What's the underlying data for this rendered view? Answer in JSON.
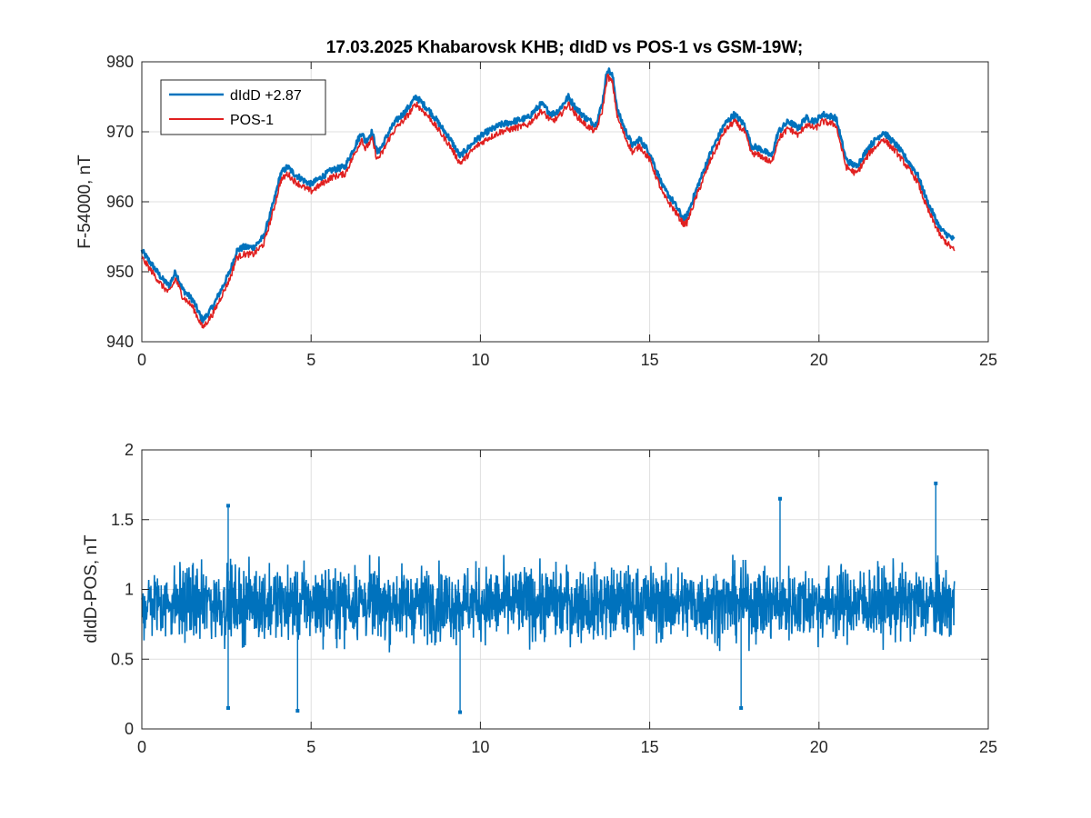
{
  "figure": {
    "title": "17.03.2025  Khabarovsk KHB; dIdD vs POS-1 vs GSM-19W;"
  },
  "chart_data": [
    {
      "type": "line",
      "title": "17.03.2025  Khabarovsk KHB; dIdD vs POS-1 vs GSM-19W;",
      "xlabel": "",
      "ylabel": "F-54000, nT",
      "xlim": [
        0,
        25
      ],
      "ylim": [
        940,
        980
      ],
      "xticks": [
        0,
        5,
        10,
        15,
        20,
        25
      ],
      "yticks": [
        940,
        950,
        960,
        970,
        980
      ],
      "grid": true,
      "legend": "top-left",
      "series": [
        {
          "name": "dIdD +2.87",
          "color": "#0072BD",
          "x": [
            0,
            0.3,
            0.6,
            0.8,
            1.0,
            1.2,
            1.5,
            1.8,
            2.1,
            2.4,
            2.6,
            2.8,
            3.0,
            3.3,
            3.6,
            3.9,
            4.1,
            4.3,
            4.5,
            4.8,
            5.0,
            5.3,
            5.6,
            6.0,
            6.3,
            6.5,
            6.6,
            6.8,
            6.95,
            7.1,
            7.3,
            7.5,
            7.8,
            8.1,
            8.5,
            8.8,
            9.1,
            9.4,
            9.6,
            9.9,
            10.2,
            10.6,
            11.0,
            11.4,
            11.8,
            12.1,
            12.3,
            12.6,
            12.8,
            13.1,
            13.4,
            13.6,
            13.75,
            13.9,
            14.05,
            14.3,
            14.5,
            14.7,
            15.0,
            15.4,
            15.7,
            16.0,
            16.1,
            16.4,
            16.8,
            17.2,
            17.5,
            17.8,
            18.0,
            18.3,
            18.6,
            18.8,
            19.1,
            19.4,
            19.6,
            19.9,
            20.1,
            20.5,
            20.8,
            21.1,
            21.5,
            21.9,
            22.3,
            22.6,
            22.9,
            23.2,
            23.6,
            24.0
          ],
          "values": [
            953,
            951,
            949,
            948,
            950,
            947.5,
            946,
            943,
            945,
            948,
            950,
            953,
            953.5,
            953.5,
            955,
            960,
            964,
            965,
            964,
            963,
            962.5,
            963.5,
            964.5,
            965,
            968,
            970,
            968.5,
            970,
            967,
            968,
            970,
            971.5,
            973,
            975,
            973,
            971,
            969,
            966.5,
            967.5,
            969,
            970,
            971,
            971.5,
            972,
            974,
            972.5,
            973,
            975,
            973.5,
            972,
            971,
            974,
            979,
            978,
            973,
            970,
            968,
            969,
            967,
            962,
            960,
            957.5,
            958,
            962,
            967,
            971,
            972.5,
            971,
            968,
            967.5,
            966.5,
            970,
            971.5,
            970.5,
            972,
            971.5,
            972.5,
            972,
            966,
            965,
            968,
            970,
            968,
            966,
            964,
            960,
            956,
            954.5
          ]
        },
        {
          "name": "POS-1",
          "color": "#E02020",
          "x": [
            0,
            0.3,
            0.6,
            0.8,
            1.0,
            1.2,
            1.5,
            1.8,
            2.1,
            2.4,
            2.6,
            2.8,
            3.0,
            3.3,
            3.6,
            3.9,
            4.1,
            4.3,
            4.5,
            4.8,
            5.0,
            5.3,
            5.6,
            6.0,
            6.3,
            6.5,
            6.6,
            6.8,
            6.95,
            7.1,
            7.3,
            7.5,
            7.8,
            8.1,
            8.5,
            8.8,
            9.1,
            9.4,
            9.6,
            9.9,
            10.2,
            10.6,
            11.0,
            11.4,
            11.8,
            12.1,
            12.3,
            12.6,
            12.8,
            13.1,
            13.4,
            13.6,
            13.75,
            13.9,
            14.05,
            14.3,
            14.5,
            14.7,
            15.0,
            15.4,
            15.7,
            16.0,
            16.1,
            16.4,
            16.8,
            17.2,
            17.5,
            17.8,
            18.0,
            18.3,
            18.6,
            18.8,
            19.1,
            19.4,
            19.6,
            19.9,
            20.1,
            20.5,
            20.8,
            21.1,
            21.5,
            21.9,
            22.3,
            22.6,
            22.9,
            23.2,
            23.6,
            24.0
          ],
          "values": [
            952,
            950,
            948,
            947,
            949,
            946.5,
            945,
            942,
            944,
            947,
            949,
            952,
            952.5,
            952.5,
            954,
            959,
            963,
            964,
            963,
            962,
            961.5,
            962.5,
            963.5,
            964,
            967,
            969,
            967.5,
            969,
            966,
            967,
            969,
            970.5,
            972,
            974,
            972,
            970,
            968,
            965.5,
            966.5,
            968,
            969,
            970,
            970.5,
            971,
            973,
            971.5,
            972,
            974,
            972.5,
            971,
            970,
            973,
            978,
            977,
            972,
            969,
            967,
            968,
            966,
            961,
            959,
            956.8,
            957,
            961,
            966,
            970,
            971.5,
            970,
            967,
            966.5,
            965.5,
            969,
            970.5,
            969.5,
            971,
            970.5,
            971.5,
            971,
            965,
            964,
            967,
            969,
            967,
            965,
            963,
            959,
            955,
            953
          ]
        }
      ]
    },
    {
      "type": "line",
      "title": "",
      "xlabel": "",
      "ylabel": "dIdD-POS, nT",
      "xlim": [
        0,
        25
      ],
      "ylim": [
        0,
        2
      ],
      "xticks": [
        0,
        5,
        10,
        15,
        20,
        25
      ],
      "yticks": [
        0,
        0.5,
        1,
        1.5,
        2
      ],
      "yticklabels": [
        "0",
        "0.5",
        "1",
        "1.5",
        "2"
      ],
      "grid": true,
      "series": [
        {
          "name": "",
          "color": "#0072BD",
          "x_range": [
            0,
            24
          ],
          "mean": 0.9,
          "band": [
            0.5,
            1.3
          ],
          "extremes": [
            {
              "x": 2.55,
              "y": 1.6
            },
            {
              "x": 18.85,
              "y": 1.65
            },
            {
              "x": 23.45,
              "y": 1.76
            },
            {
              "x": 9.4,
              "y": 0.12
            },
            {
              "x": 4.6,
              "y": 0.13
            },
            {
              "x": 2.55,
              "y": 0.15
            },
            {
              "x": 17.7,
              "y": 0.15
            }
          ]
        }
      ]
    }
  ]
}
